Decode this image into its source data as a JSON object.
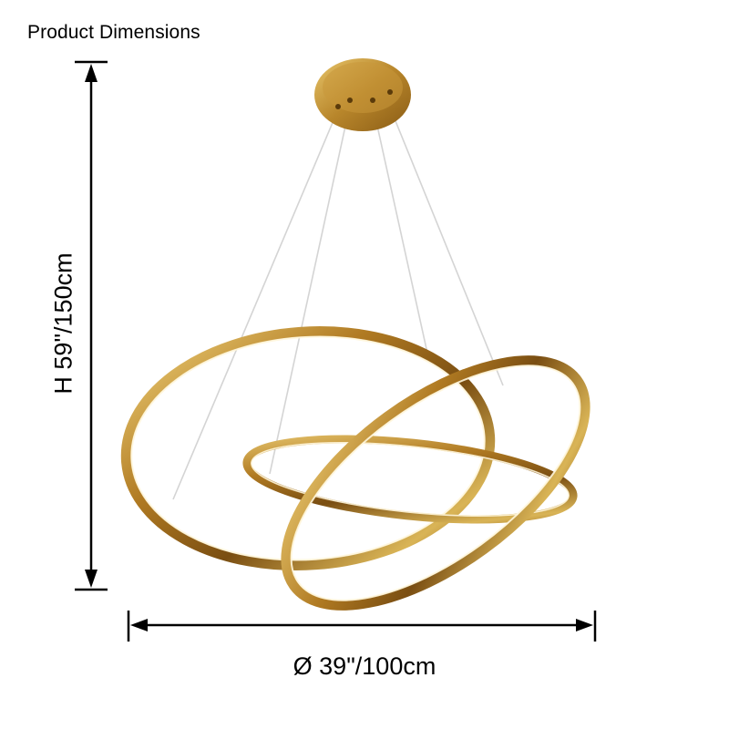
{
  "heading": "Product Dimensions",
  "dimensions": {
    "height_label": "H 59\"/150cm",
    "width_label": "Ø 39\"/100cm"
  },
  "colors": {
    "gold": "#b8862b",
    "gold_dark": "#6b4510",
    "gold_light": "#f3dc8e",
    "ring_inner_light": "#fff6dc",
    "wire": "#d6d6d6",
    "arrow": "#000000"
  },
  "illustration": {
    "subject": "pendant-ring-chandelier",
    "rings": 3,
    "suspension_wires": 4
  }
}
